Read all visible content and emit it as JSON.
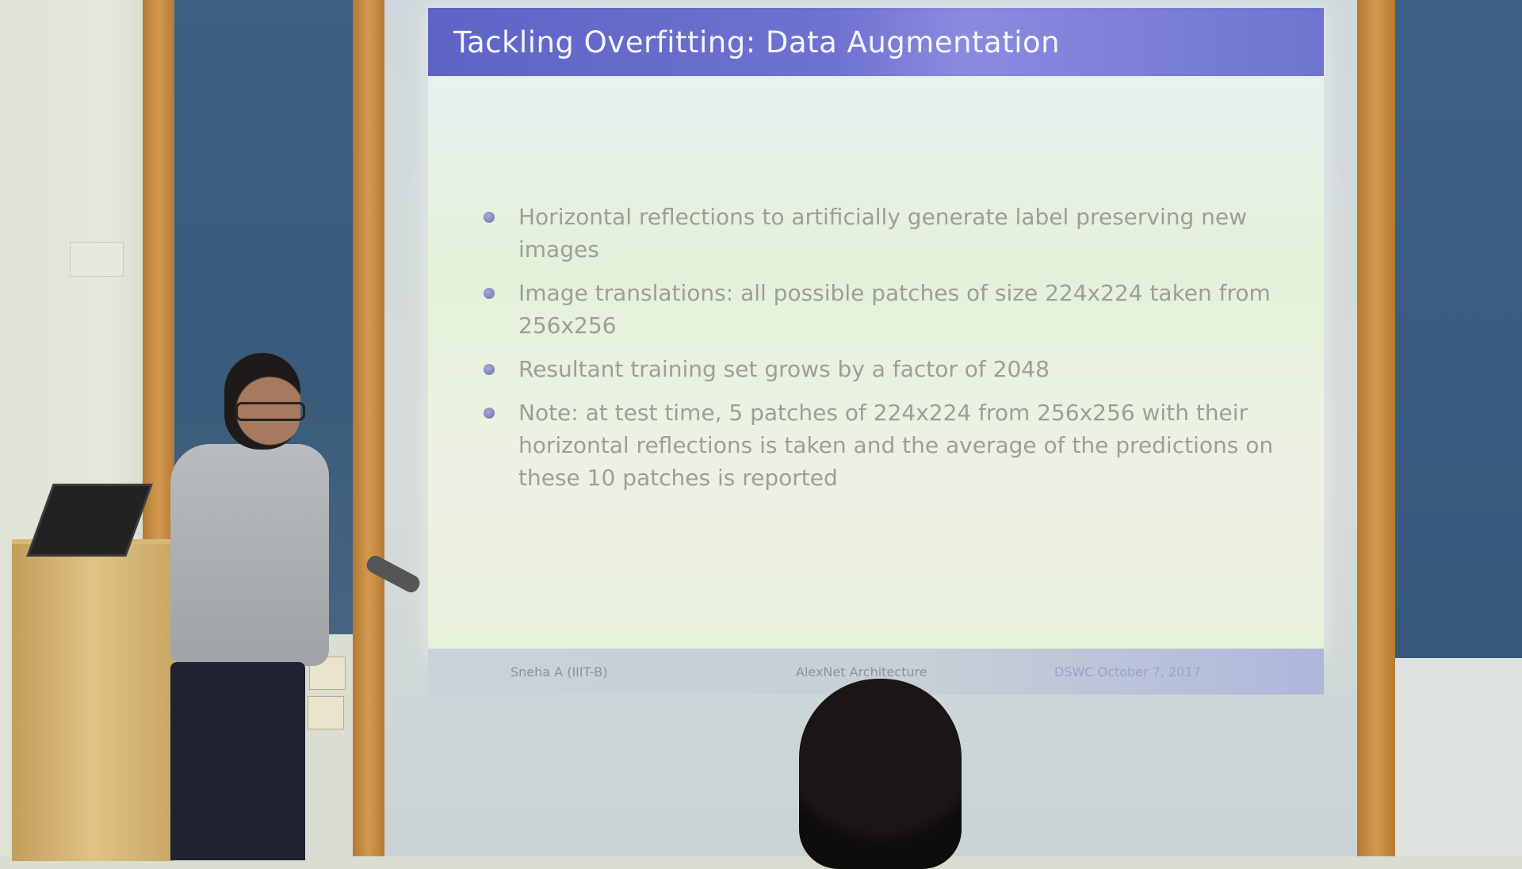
{
  "slide": {
    "title": "Tackling Overfitting: Data Augmentation",
    "bullets": [
      "Horizontal reflections to artificially generate label preserving new images",
      "Image translations: all possible patches of size 224x224 taken from 256x256",
      "Resultant training set grows by a factor of 2048",
      "Note: at test time, 5 patches of 224x224 from 256x256 with their horizontal reflections is taken and the average of the predictions on these 10 patches is reported"
    ],
    "footer": {
      "author": "Sneha A (IIIT-B)",
      "topic": "AlexNet Architecture",
      "event_date": "DSWC October 7, 2017"
    }
  },
  "colors": {
    "title_bar": "#6a6fcd",
    "slide_bg": "#e7f2df",
    "bullet_text": "#9c9f98",
    "wood": "#c98e45",
    "wall_panel": "#3b5c7d"
  }
}
